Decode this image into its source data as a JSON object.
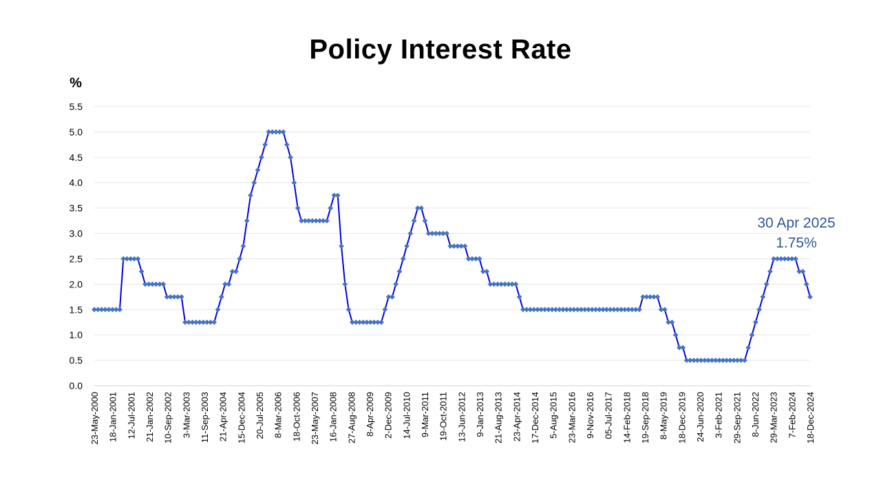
{
  "chart_data": {
    "type": "line",
    "title": "Policy Interest Rate",
    "ylabel": "%",
    "xlabel": "",
    "ylim": [
      0,
      5.5
    ],
    "yticks": [
      "0.0",
      "0.5",
      "1.0",
      "1.5",
      "2.0",
      "2.5",
      "3.0",
      "3.5",
      "4.0",
      "4.5",
      "5.0",
      "5.5"
    ],
    "grid": true,
    "legend": "none",
    "series_color": "#0000dd",
    "marker_color": "#4472c4",
    "annotation_color": "#2f5597",
    "annotation": {
      "date": "30 Apr 2025",
      "value": "1.75%"
    },
    "x_tick_labels": [
      "23-May-2000",
      "18-Jan-2001",
      "12-Jul-2001",
      "21-Jan-2002",
      "10-Sep-2002",
      "3-Mar-2003",
      "11-Sep-2003",
      "21-Apr-2004",
      "15-Dec-2004",
      "20-Jul-2005",
      "8-Mar-2006",
      "18-Oct-2006",
      "23-May-2007",
      "16-Jan-2008",
      "27-Aug-2008",
      "8-Apr-2009",
      "2-Dec-2009",
      "14-Jul-2010",
      "9-Mar-2011",
      "19-Oct-2011",
      "13-Jun-2012",
      "9-Jan-2013",
      "21-Aug-2013",
      "23-Apr-2014",
      "17-Dec-2014",
      "5-Aug-2015",
      "23-Mar-2016",
      "9-Nov-2016",
      "05-Jul-2017",
      "14-Feb-2018",
      "19-Sep-2018",
      "8-May-2019",
      "18-Dec-2019",
      "24-Jun-2020",
      "3-Feb-2021",
      "29-Sep-2021",
      "8-Jun-2022",
      "29-Mar-2023",
      "7-Feb-2024",
      "18-Dec-2024"
    ],
    "values": [
      1.5,
      1.5,
      1.5,
      1.5,
      1.5,
      1.5,
      1.5,
      1.5,
      2.5,
      2.5,
      2.5,
      2.5,
      2.5,
      2.25,
      2.0,
      2.0,
      2.0,
      2.0,
      2.0,
      2.0,
      1.75,
      1.75,
      1.75,
      1.75,
      1.75,
      1.25,
      1.25,
      1.25,
      1.25,
      1.25,
      1.25,
      1.25,
      1.25,
      1.25,
      1.5,
      1.75,
      2.0,
      2.0,
      2.25,
      2.25,
      2.5,
      2.75,
      3.25,
      3.75,
      4.0,
      4.25,
      4.5,
      4.75,
      5.0,
      5.0,
      5.0,
      5.0,
      5.0,
      4.75,
      4.5,
      4.0,
      3.5,
      3.25,
      3.25,
      3.25,
      3.25,
      3.25,
      3.25,
      3.25,
      3.25,
      3.5,
      3.75,
      3.75,
      2.75,
      2.0,
      1.5,
      1.25,
      1.25,
      1.25,
      1.25,
      1.25,
      1.25,
      1.25,
      1.25,
      1.25,
      1.5,
      1.75,
      1.75,
      2.0,
      2.25,
      2.5,
      2.75,
      3.0,
      3.25,
      3.5,
      3.5,
      3.25,
      3.0,
      3.0,
      3.0,
      3.0,
      3.0,
      3.0,
      2.75,
      2.75,
      2.75,
      2.75,
      2.75,
      2.5,
      2.5,
      2.5,
      2.5,
      2.25,
      2.25,
      2.0,
      2.0,
      2.0,
      2.0,
      2.0,
      2.0,
      2.0,
      2.0,
      1.75,
      1.5,
      1.5,
      1.5,
      1.5,
      1.5,
      1.5,
      1.5,
      1.5,
      1.5,
      1.5,
      1.5,
      1.5,
      1.5,
      1.5,
      1.5,
      1.5,
      1.5,
      1.5,
      1.5,
      1.5,
      1.5,
      1.5,
      1.5,
      1.5,
      1.5,
      1.5,
      1.5,
      1.5,
      1.5,
      1.5,
      1.5,
      1.5,
      1.5,
      1.75,
      1.75,
      1.75,
      1.75,
      1.75,
      1.5,
      1.5,
      1.25,
      1.25,
      1.0,
      0.75,
      0.75,
      0.5,
      0.5,
      0.5,
      0.5,
      0.5,
      0.5,
      0.5,
      0.5,
      0.5,
      0.5,
      0.5,
      0.5,
      0.5,
      0.5,
      0.5,
      0.5,
      0.5,
      0.75,
      1.0,
      1.25,
      1.5,
      1.75,
      2.0,
      2.25,
      2.5,
      2.5,
      2.5,
      2.5,
      2.5,
      2.5,
      2.5,
      2.25,
      2.25,
      2.0,
      1.75
    ]
  }
}
